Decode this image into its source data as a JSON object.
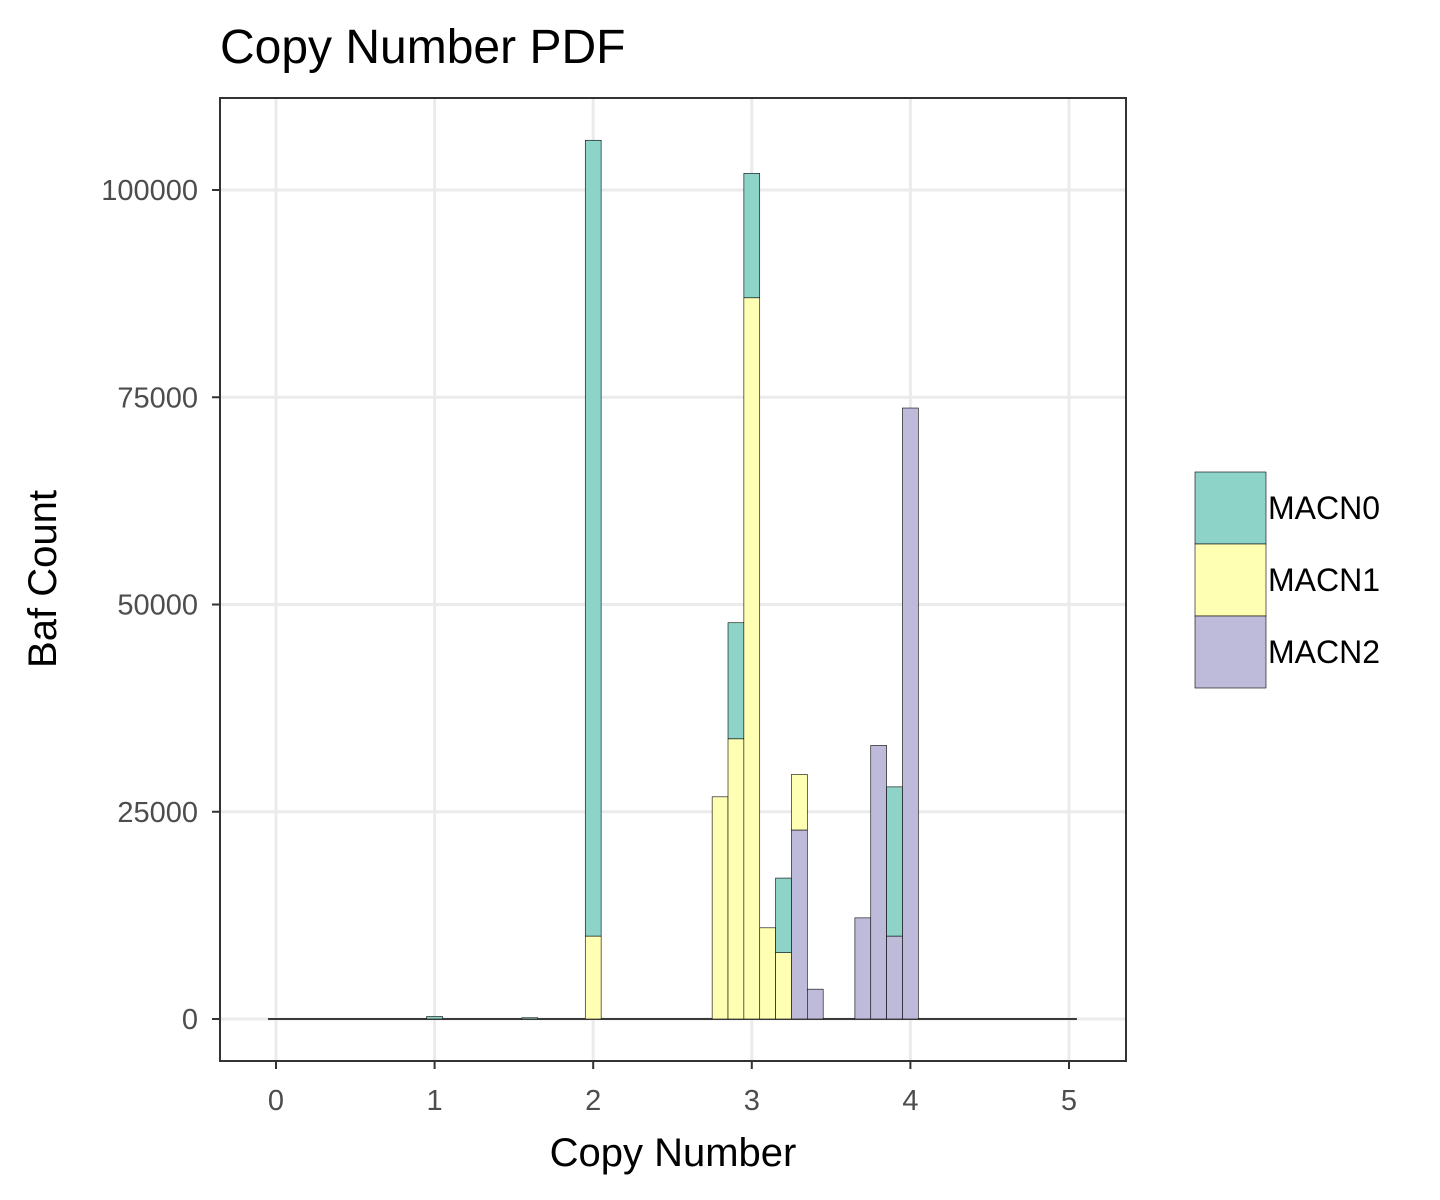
{
  "chart_data": {
    "type": "bar",
    "stacked": true,
    "title": "Copy Number PDF",
    "xlabel": "Copy Number",
    "ylabel": "Baf Count",
    "xlim": [
      -0.05,
      5.05
    ],
    "ylim": [
      -5000,
      111000
    ],
    "x_ticks": [
      0,
      1,
      2,
      3,
      4,
      5
    ],
    "y_ticks": [
      0,
      25000,
      50000,
      75000,
      100000
    ],
    "y_tick_labels": [
      "0",
      "25000",
      "50000",
      "75000",
      "100000"
    ],
    "grid": true,
    "bin_width": 0.1,
    "bin_start": -0.05,
    "bin_count": 51,
    "legend_position": "right",
    "series": [
      {
        "name": "MACN0",
        "color": "#8dd3c7",
        "bins": [
          [
            10,
            300
          ],
          [
            16,
            150
          ],
          [
            20,
            96000
          ],
          [
            29,
            14000
          ],
          [
            30,
            15000
          ],
          [
            32,
            9000
          ],
          [
            39,
            18000
          ]
        ]
      },
      {
        "name": "MACN1",
        "color": "#ffffb3",
        "bins": [
          [
            20,
            10000
          ],
          [
            28,
            26800
          ],
          [
            29,
            33800
          ],
          [
            30,
            87000
          ],
          [
            31,
            11000
          ],
          [
            32,
            8000
          ],
          [
            33,
            6700
          ]
        ]
      },
      {
        "name": "MACN2",
        "color": "#bebada",
        "bins": [
          [
            33,
            22800
          ],
          [
            34,
            3600
          ],
          [
            37,
            12200
          ],
          [
            38,
            33000
          ],
          [
            39,
            10000
          ],
          [
            40,
            73700
          ]
        ]
      }
    ]
  }
}
